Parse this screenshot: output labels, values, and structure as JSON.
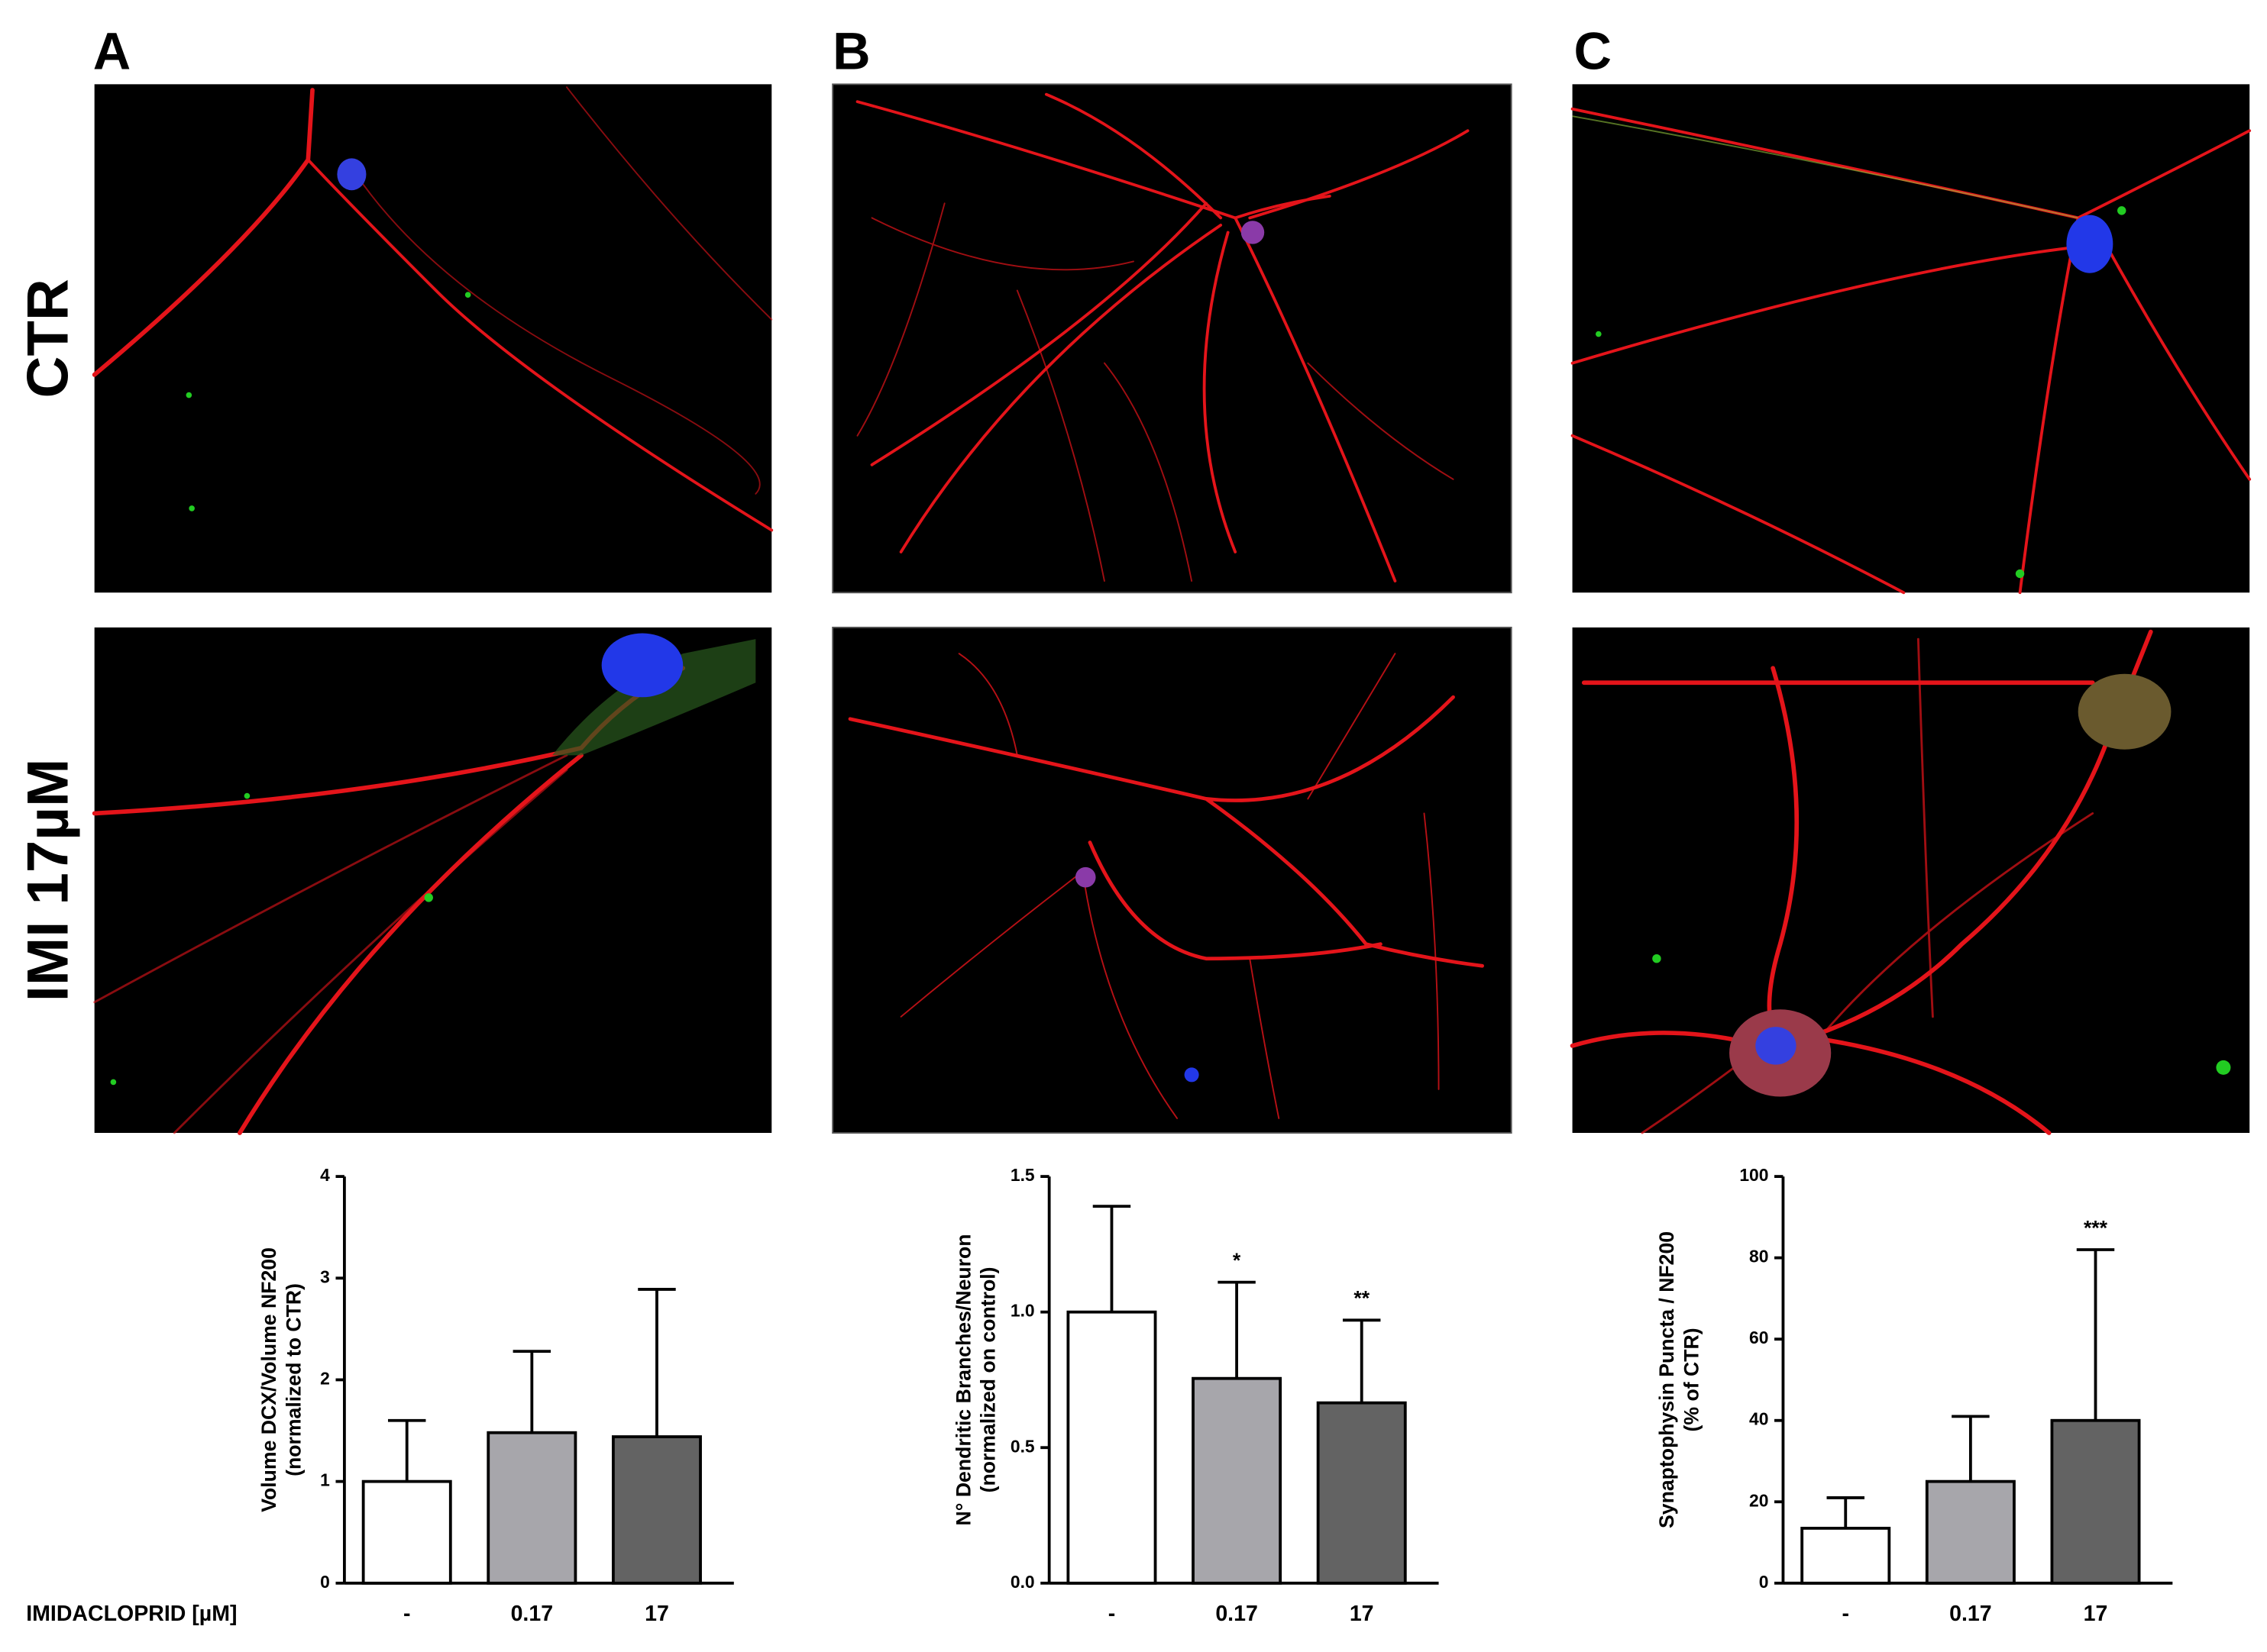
{
  "figure": {
    "panel_labels": [
      "A",
      "B",
      "C"
    ],
    "row_labels": [
      "CTR",
      "IMI 17µM"
    ],
    "x_axis_title": "IMIDACLOPRID [µM]"
  },
  "chart_data": [
    {
      "type": "bar",
      "ylabel": [
        "Volume DCX/Volume NF200",
        "(normalized to CTR)"
      ],
      "categories": [
        "-",
        "0.17",
        "17"
      ],
      "values": [
        1.0,
        1.48,
        1.44
      ],
      "errors": [
        0.6,
        0.8,
        1.45
      ],
      "colors": [
        "#ffffff",
        "#a7a6ab",
        "#636363"
      ],
      "ylim": [
        0,
        4
      ],
      "yticks": [
        0,
        1,
        2,
        3,
        4
      ]
    },
    {
      "type": "bar",
      "ylabel": [
        "N° Dendritic Branches/Neuron",
        "(normalized on control)"
      ],
      "categories": [
        "-",
        "0.17",
        "17"
      ],
      "values": [
        1.0,
        0.755,
        0.665
      ],
      "errors": [
        0.39,
        0.355,
        0.305
      ],
      "annotations": [
        null,
        "*",
        "**"
      ],
      "colors": [
        "#ffffff",
        "#a7a6ab",
        "#636363"
      ],
      "ylim": [
        0,
        1.5
      ],
      "yticks": [
        {
          "value": 0,
          "label": "0.0"
        },
        0.5,
        {
          "value": 1,
          "label": "1.0"
        },
        1.5
      ]
    },
    {
      "type": "bar",
      "ylabel": [
        "Synaptophysin Puncta / NF200",
        "(% of CTR)"
      ],
      "categories": [
        "-",
        "0.17",
        "17"
      ],
      "values": [
        13.5,
        25,
        40
      ],
      "errors": [
        7.5,
        16,
        42
      ],
      "annotations": [
        null,
        null,
        "***"
      ],
      "colors": [
        "#ffffff",
        "#a7a6ab",
        "#636363"
      ],
      "ylim": [
        0,
        100
      ],
      "yticks": [
        0,
        20,
        40,
        60,
        80,
        100
      ]
    }
  ]
}
